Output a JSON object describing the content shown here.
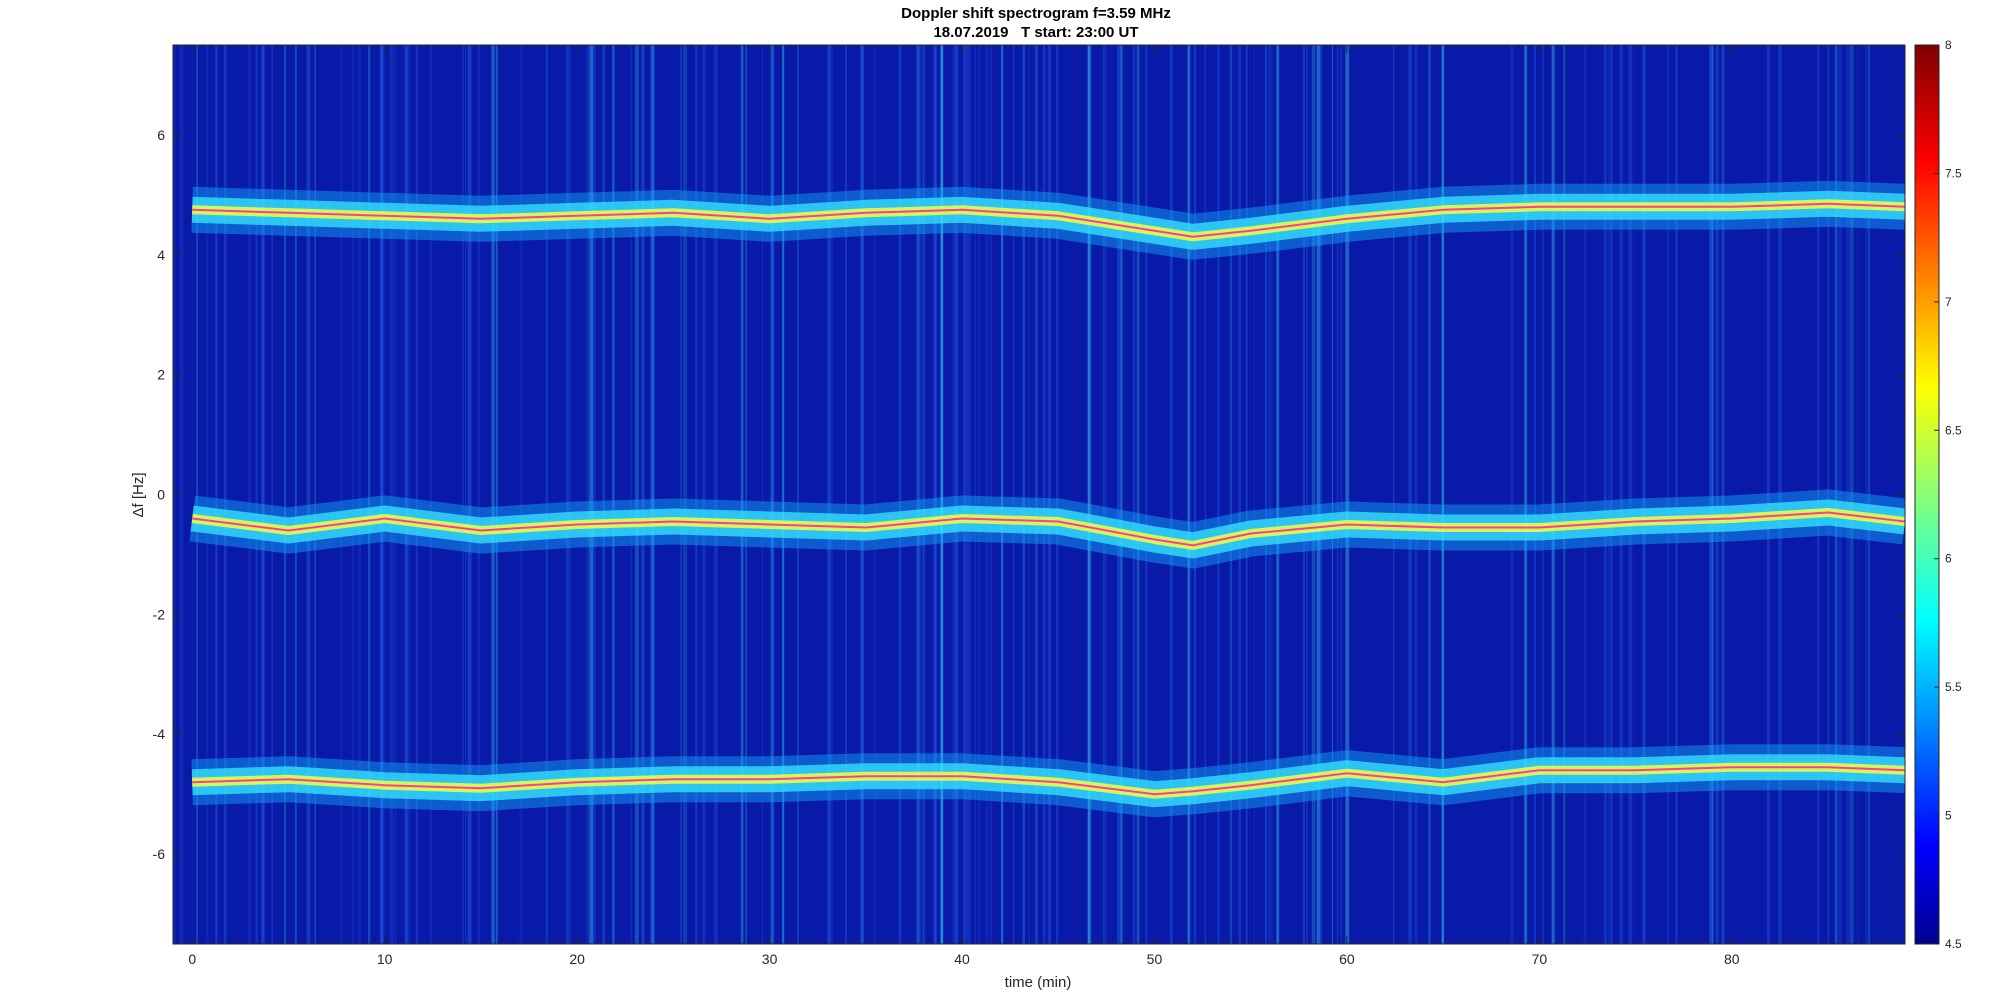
{
  "chart_data": {
    "type": "heatmap",
    "title": "Doppler shift spectrogram f=3.59 MHz",
    "subtitle": "18.07.2019   T start: 23:00 UT",
    "xlabel": "time (min)",
    "ylabel": "Δf [Hz]",
    "xlim": [
      -1,
      89
    ],
    "ylim": [
      -7.5,
      7.5
    ],
    "xticks": [
      0,
      10,
      20,
      30,
      40,
      50,
      60,
      70,
      80
    ],
    "yticks": [
      -6,
      -4,
      -2,
      0,
      2,
      4,
      6
    ],
    "colorbar": {
      "colormap": "jet",
      "range": [
        4.5,
        8
      ],
      "ticks": [
        "4.5",
        "5",
        "5.5",
        "6",
        "6.5",
        "7",
        "7.5",
        "8"
      ]
    },
    "series": [
      {
        "x": [
          0,
          5,
          10,
          15,
          20,
          25,
          30,
          35,
          40,
          45,
          50,
          52,
          55,
          60,
          65,
          70,
          75,
          80,
          85,
          89
        ],
        "y": [
          4.75,
          4.7,
          4.65,
          4.6,
          4.65,
          4.7,
          4.6,
          4.7,
          4.75,
          4.65,
          4.4,
          4.3,
          4.4,
          4.6,
          4.75,
          4.8,
          4.8,
          4.8,
          4.85,
          4.8
        ]
      },
      {
        "x": [
          0,
          5,
          10,
          15,
          20,
          25,
          30,
          35,
          40,
          45,
          50,
          52,
          55,
          60,
          65,
          70,
          75,
          80,
          85,
          89
        ],
        "y": [
          -0.4,
          -0.6,
          -0.4,
          -0.6,
          -0.5,
          -0.45,
          -0.5,
          -0.55,
          -0.4,
          -0.45,
          -0.75,
          -0.85,
          -0.65,
          -0.5,
          -0.55,
          -0.55,
          -0.45,
          -0.4,
          -0.3,
          -0.45
        ]
      },
      {
        "x": [
          0,
          5,
          10,
          15,
          20,
          25,
          30,
          35,
          40,
          45,
          50,
          52,
          55,
          60,
          65,
          70,
          75,
          80,
          85,
          89
        ],
        "y": [
          -4.8,
          -4.75,
          -4.85,
          -4.9,
          -4.8,
          -4.75,
          -4.75,
          -4.7,
          -4.7,
          -4.8,
          -5.0,
          -4.95,
          -4.85,
          -4.65,
          -4.8,
          -4.6,
          -4.6,
          -4.55,
          -4.55,
          -4.6
        ]
      }
    ]
  }
}
